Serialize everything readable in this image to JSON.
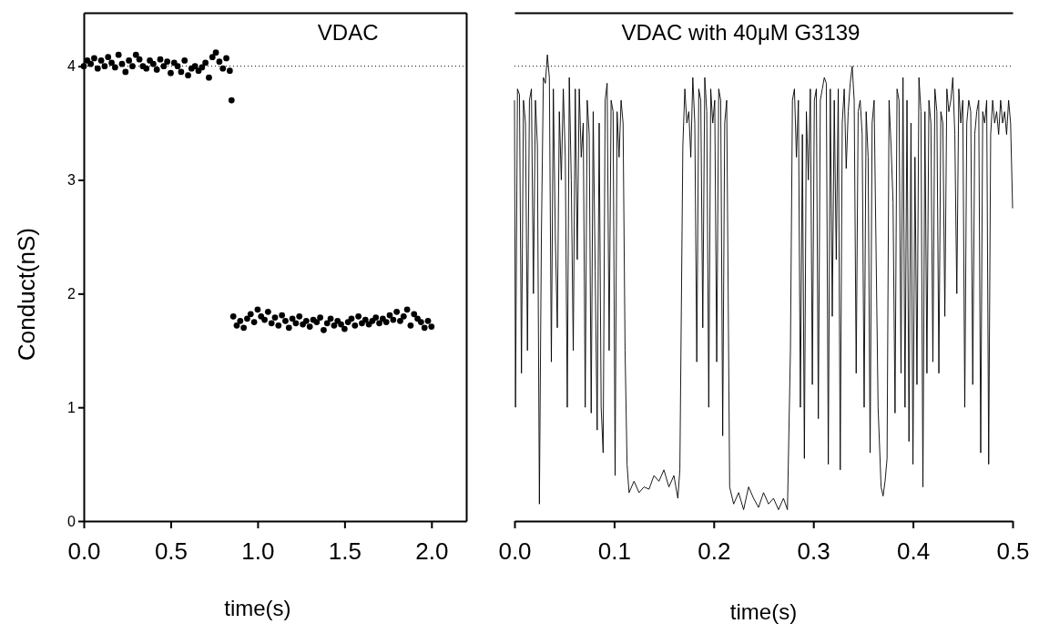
{
  "chart_data": [
    {
      "type": "scatter",
      "title": "VDAC",
      "xlabel": "time(s)",
      "ylabel": "Conduct(nS)",
      "xlim": [
        0,
        2.2
      ],
      "xticks": [
        {
          "value": 0,
          "label": "0.0"
        },
        {
          "value": 0.5,
          "label": "0.5"
        },
        {
          "value": 1,
          "label": "1.0"
        },
        {
          "value": 1.5,
          "label": "1.5"
        },
        {
          "value": 2,
          "label": "2.0"
        }
      ],
      "ylim": [
        0,
        4.47
      ],
      "yticks": [
        0,
        1,
        2,
        3,
        4
      ],
      "marker": "circle",
      "ref_lines": [
        {
          "axis": "y",
          "value": 4,
          "line_style": "dotted",
          "color": "#000000"
        }
      ],
      "series": [
        {
          "color": "#000000",
          "x": [
            0,
            0.02,
            0.04,
            0.06,
            0.08,
            0.1,
            0.12,
            0.14,
            0.16,
            0.18,
            0.2,
            0.22,
            0.24,
            0.26,
            0.28,
            0.3,
            0.32,
            0.34,
            0.36,
            0.38,
            0.4,
            0.42,
            0.44,
            0.46,
            0.48,
            0.5,
            0.52,
            0.54,
            0.56,
            0.58,
            0.6,
            0.62,
            0.64,
            0.66,
            0.68,
            0.7,
            0.72,
            0.74,
            0.76,
            0.78,
            0.8,
            0.82,
            0.84,
            0.85,
            0.86,
            0.88,
            0.9,
            0.92,
            0.94,
            0.96,
            0.98,
            1,
            1.02,
            1.04,
            1.06,
            1.08,
            1.1,
            1.12,
            1.14,
            1.16,
            1.18,
            1.2,
            1.22,
            1.24,
            1.26,
            1.28,
            1.3,
            1.32,
            1.34,
            1.36,
            1.38,
            1.4,
            1.42,
            1.44,
            1.46,
            1.48,
            1.5,
            1.52,
            1.54,
            1.56,
            1.58,
            1.6,
            1.62,
            1.64,
            1.66,
            1.68,
            1.7,
            1.72,
            1.74,
            1.76,
            1.78,
            1.8,
            1.82,
            1.84,
            1.86,
            1.88,
            1.9,
            1.92,
            1.94,
            1.96,
            1.98,
            2
          ],
          "values": [
            4.0,
            4.05,
            4.02,
            4.07,
            3.98,
            4.05,
            4.0,
            4.08,
            4.03,
            3.99,
            4.1,
            4.02,
            3.95,
            4.05,
            4.0,
            4.1,
            4.06,
            4.0,
            3.98,
            4.05,
            4.02,
            3.97,
            4.06,
            4.0,
            4.04,
            3.94,
            4.03,
            4.0,
            3.95,
            4.05,
            3.92,
            3.98,
            4.0,
            3.96,
            3.99,
            4.03,
            3.9,
            4.08,
            4.12,
            4.04,
            3.98,
            4.07,
            3.96,
            3.7,
            1.8,
            1.72,
            1.76,
            1.7,
            1.78,
            1.82,
            1.75,
            1.86,
            1.8,
            1.77,
            1.84,
            1.74,
            1.79,
            1.72,
            1.81,
            1.76,
            1.7,
            1.78,
            1.74,
            1.8,
            1.73,
            1.76,
            1.71,
            1.77,
            1.75,
            1.79,
            1.68,
            1.74,
            1.78,
            1.72,
            1.76,
            1.73,
            1.69,
            1.75,
            1.78,
            1.72,
            1.8,
            1.74,
            1.77,
            1.73,
            1.76,
            1.79,
            1.74,
            1.78,
            1.75,
            1.81,
            1.77,
            1.84,
            1.76,
            1.8,
            1.86,
            1.72,
            1.82,
            1.78,
            1.75,
            1.7,
            1.76,
            1.71
          ]
        }
      ]
    },
    {
      "type": "line",
      "title": "VDAC with 40μM G3139",
      "xlabel": "time(s)",
      "xlim": [
        0,
        0.5
      ],
      "xticks": [
        {
          "value": 0,
          "label": "0.0"
        },
        0.1,
        0.2,
        0.3,
        0.4,
        0.5
      ],
      "ylim": [
        0,
        4.47
      ],
      "tick_labels": "x",
      "line_style": "solid",
      "ref_lines": [
        {
          "axis": "y",
          "value": 4,
          "line_style": "dotted",
          "color": "#000000"
        }
      ],
      "series": [
        {
          "color": "#000000",
          "x": [
            0,
            0.001,
            0.003,
            0.005,
            0.007,
            0.009,
            0.011,
            0.013,
            0.015,
            0.017,
            0.019,
            0.021,
            0.023,
            0.025,
            0.027,
            0.029,
            0.031,
            0.033,
            0.035,
            0.037,
            0.039,
            0.041,
            0.043,
            0.045,
            0.047,
            0.049,
            0.051,
            0.053,
            0.055,
            0.057,
            0.059,
            0.061,
            0.063,
            0.065,
            0.067,
            0.069,
            0.071,
            0.073,
            0.075,
            0.077,
            0.079,
            0.081,
            0.083,
            0.085,
            0.087,
            0.089,
            0.091,
            0.093,
            0.095,
            0.097,
            0.099,
            0.101,
            0.103,
            0.105,
            0.107,
            0.109,
            0.111,
            0.113,
            0.115,
            0.12,
            0.125,
            0.13,
            0.135,
            0.14,
            0.145,
            0.15,
            0.155,
            0.16,
            0.164,
            0.166,
            0.169,
            0.171,
            0.173,
            0.175,
            0.177,
            0.179,
            0.181,
            0.183,
            0.185,
            0.187,
            0.189,
            0.191,
            0.193,
            0.195,
            0.197,
            0.199,
            0.201,
            0.203,
            0.205,
            0.207,
            0.209,
            0.211,
            0.213,
            0.216,
            0.22,
            0.225,
            0.23,
            0.235,
            0.24,
            0.245,
            0.25,
            0.255,
            0.26,
            0.265,
            0.27,
            0.274,
            0.277,
            0.279,
            0.281,
            0.283,
            0.285,
            0.287,
            0.289,
            0.291,
            0.293,
            0.295,
            0.297,
            0.299,
            0.301,
            0.303,
            0.305,
            0.307,
            0.309,
            0.311,
            0.313,
            0.315,
            0.317,
            0.319,
            0.321,
            0.323,
            0.325,
            0.327,
            0.329,
            0.331,
            0.333,
            0.335,
            0.337,
            0.339,
            0.341,
            0.343,
            0.345,
            0.347,
            0.349,
            0.351,
            0.353,
            0.355,
            0.357,
            0.359,
            0.361,
            0.365,
            0.368,
            0.37,
            0.372,
            0.374,
            0.376,
            0.378,
            0.38,
            0.382,
            0.384,
            0.386,
            0.388,
            0.39,
            0.392,
            0.394,
            0.396,
            0.398,
            0.4,
            0.402,
            0.404,
            0.406,
            0.408,
            0.41,
            0.412,
            0.414,
            0.416,
            0.418,
            0.42,
            0.422,
            0.424,
            0.426,
            0.428,
            0.43,
            0.432,
            0.434,
            0.436,
            0.438,
            0.44,
            0.442,
            0.444,
            0.446,
            0.448,
            0.45,
            0.452,
            0.454,
            0.456,
            0.458,
            0.46,
            0.462,
            0.464,
            0.466,
            0.468,
            0.47,
            0.472,
            0.474,
            0.476,
            0.478,
            0.48,
            0.482,
            0.484,
            0.486,
            0.488,
            0.49,
            0.492,
            0.494,
            0.496,
            0.498,
            0.5
          ],
          "values": [
            3.7,
            1.0,
            3.8,
            3.75,
            1.3,
            3.7,
            3.5,
            1.5,
            3.7,
            3.8,
            2.0,
            3.7,
            3.3,
            0.15,
            2.5,
            3.9,
            3.85,
            4.1,
            3.9,
            1.4,
            3.8,
            2.5,
            1.7,
            3.6,
            3.0,
            3.8,
            3.2,
            1.0,
            3.9,
            3.0,
            1.5,
            3.8,
            2.3,
            3.8,
            3.2,
            3.5,
            1.0,
            3.7,
            3.4,
            0.95,
            3.6,
            2.2,
            0.8,
            3.5,
            1.0,
            0.6,
            3.7,
            3.85,
            1.5,
            3.7,
            3.6,
            0.4,
            3.6,
            3.2,
            3.7,
            3.5,
            1.5,
            0.5,
            0.25,
            0.35,
            0.25,
            0.3,
            0.28,
            0.4,
            0.35,
            0.45,
            0.3,
            0.4,
            0.2,
            0.45,
            3.3,
            3.8,
            3.5,
            3.6,
            3.2,
            3.9,
            3.5,
            1.4,
            3.8,
            3.7,
            1.7,
            3.9,
            3.6,
            1.0,
            3.8,
            3.5,
            3.7,
            1.4,
            3.8,
            3.7,
            0.75,
            3.5,
            3.7,
            0.3,
            0.15,
            0.25,
            0.1,
            0.3,
            0.2,
            0.12,
            0.25,
            0.15,
            0.2,
            0.1,
            0.2,
            0.1,
            1.5,
            3.7,
            3.8,
            3.2,
            3.7,
            1.0,
            3.4,
            0.55,
            3.6,
            3.0,
            3.8,
            1.2,
            3.7,
            3.8,
            0.9,
            3.7,
            3.8,
            3.9,
            3.85,
            0.5,
            3.8,
            1.8,
            3.7,
            2.3,
            3.8,
            0.45,
            3.5,
            3.8,
            3.1,
            3.6,
            3.85,
            4.0,
            3.7,
            1.3,
            3.6,
            3.7,
            3.4,
            1.0,
            3.6,
            3.2,
            0.6,
            3.5,
            3.7,
            1.0,
            0.3,
            0.22,
            0.35,
            0.55,
            3.7,
            3.3,
            2.8,
            0.95,
            3.8,
            3.7,
            1.3,
            3.9,
            1.0,
            3.7,
            0.7,
            3.5,
            0.5,
            3.2,
            1.2,
            3.9,
            3.6,
            0.3,
            3.6,
            1.3,
            3.7,
            3.5,
            1.4,
            3.8,
            3.6,
            1.3,
            3.6,
            3.5,
            1.8,
            3.8,
            3.6,
            3.7,
            3.9,
            3.4,
            2.0,
            3.8,
            3.5,
            3.7,
            1.0,
            3.5,
            3.7,
            3.6,
            1.2,
            3.4,
            3.6,
            3.7,
            0.6,
            3.6,
            3.5,
            3.7,
            0.5,
            3.4,
            3.7,
            3.5,
            3.6,
            3.4,
            3.7,
            3.5,
            3.6,
            3.4,
            3.7,
            3.5,
            2.75
          ]
        }
      ]
    }
  ]
}
